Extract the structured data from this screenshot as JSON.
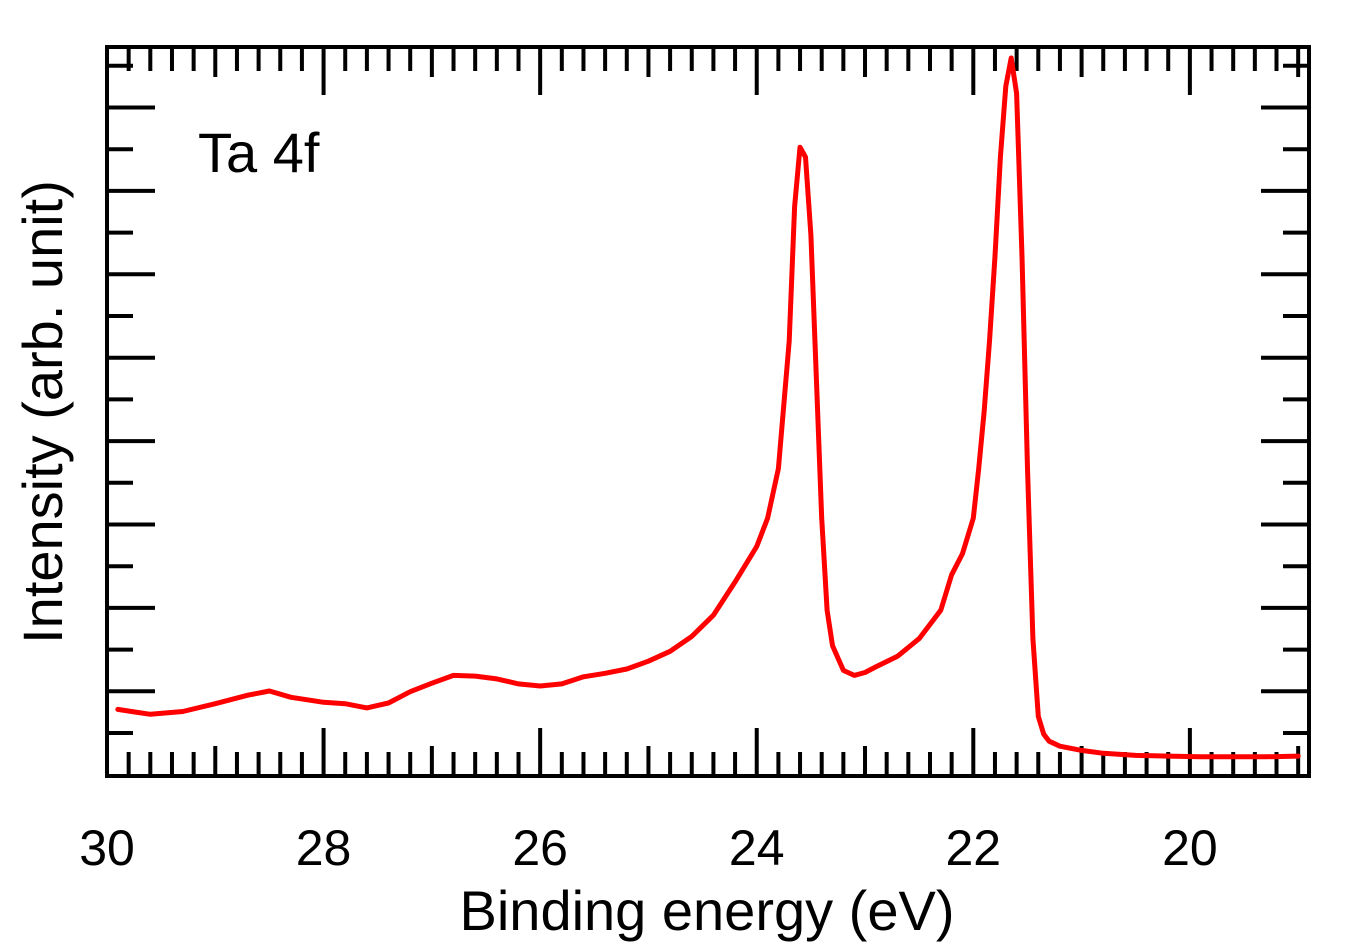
{
  "chart_data": {
    "type": "line",
    "title": "",
    "annotation": "Ta 4f",
    "xlabel": "Binding energy (eV)",
    "ylabel": "Intensity (arb. unit)",
    "x_reversed": true,
    "xlim": [
      30,
      18.9
    ],
    "ylim": [
      0,
      1
    ],
    "x_ticks": [
      30,
      28,
      26,
      24,
      22,
      20
    ],
    "x_tick_labels": [
      "30",
      "28",
      "26",
      "24",
      "22",
      "20"
    ],
    "y_tick_labels_shown": false,
    "grid": false,
    "line_color": "#ff0000",
    "series": [
      {
        "x": [
          29.9,
          29.6,
          29.3,
          29.0,
          28.7,
          28.5,
          28.3,
          28.0,
          27.8,
          27.6,
          27.4,
          27.2,
          27.0,
          26.8,
          26.6,
          26.4,
          26.2,
          26.0,
          25.8,
          25.6,
          25.4,
          25.2,
          25.0,
          24.8,
          24.6,
          24.4,
          24.2,
          24.0,
          23.9,
          23.8,
          23.7,
          23.65,
          23.6,
          23.55,
          23.5,
          23.45,
          23.4,
          23.35,
          23.3,
          23.2,
          23.1,
          23.0,
          22.9,
          22.7,
          22.5,
          22.3,
          22.2,
          22.1,
          22.0,
          21.95,
          21.9,
          21.85,
          21.8,
          21.75,
          21.7,
          21.65,
          21.6,
          21.55,
          21.5,
          21.45,
          21.4,
          21.35,
          21.3,
          21.2,
          21.0,
          20.8,
          20.5,
          20.2,
          19.9,
          19.6,
          19.3,
          19.0
        ],
        "y": [
          0.08,
          0.073,
          0.077,
          0.088,
          0.1,
          0.106,
          0.097,
          0.09,
          0.088,
          0.082,
          0.089,
          0.105,
          0.117,
          0.128,
          0.127,
          0.123,
          0.116,
          0.113,
          0.116,
          0.126,
          0.131,
          0.137,
          0.148,
          0.162,
          0.183,
          0.213,
          0.26,
          0.31,
          0.35,
          0.42,
          0.6,
          0.79,
          0.874,
          0.86,
          0.75,
          0.55,
          0.35,
          0.22,
          0.17,
          0.135,
          0.128,
          0.132,
          0.14,
          0.155,
          0.18,
          0.22,
          0.27,
          0.3,
          0.35,
          0.42,
          0.5,
          0.6,
          0.72,
          0.86,
          0.96,
          1.0,
          0.95,
          0.72,
          0.42,
          0.18,
          0.07,
          0.045,
          0.035,
          0.028,
          0.022,
          0.018,
          0.015,
          0.014,
          0.013,
          0.013,
          0.013,
          0.014
        ]
      }
    ]
  }
}
